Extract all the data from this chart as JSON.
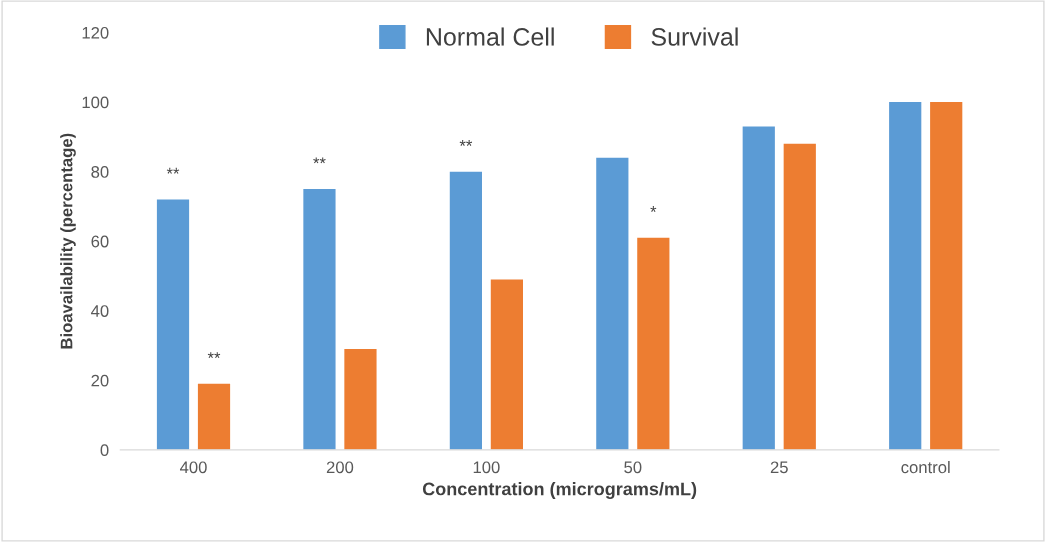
{
  "chart_data": {
    "type": "bar",
    "xlabel": "Concentration (micrograms/mL)",
    "ylabel": "Bioavailability (percentage)",
    "categories": [
      "400",
      "200",
      "100",
      "50",
      "25",
      "control"
    ],
    "series": [
      {
        "name": "Normal Cell",
        "color": "#5b9bd5",
        "values": [
          72,
          75,
          80,
          84,
          93,
          100
        ]
      },
      {
        "name": "Survival",
        "color": "#ed7d31",
        "values": [
          19,
          29,
          49,
          61,
          88,
          100
        ]
      }
    ],
    "ylim": [
      0,
      120
    ],
    "yticks": [
      0,
      20,
      40,
      60,
      80,
      100,
      120
    ],
    "grid": false,
    "legend": "top",
    "annotations": [
      {
        "text": "**",
        "x": "400",
        "y": 72
      },
      {
        "text": "**",
        "x": "200",
        "y": 75
      },
      {
        "text": "**",
        "x": "100",
        "y": 80
      },
      {
        "text": "**",
        "x": "400",
        "y": 19
      },
      {
        "text": "*",
        "x": "50",
        "y": 61
      }
    ]
  }
}
